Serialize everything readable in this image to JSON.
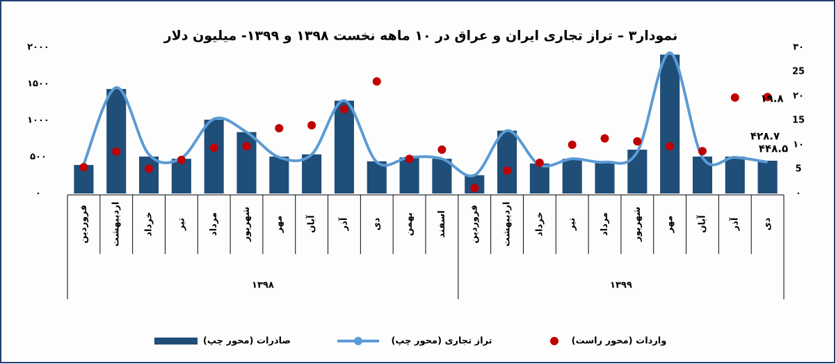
{
  "chart_data": {
    "type": "combo",
    "title": "نمودار۳ – تراز تجاری ایران و عراق در ۱۰ ماهه نخست ۱۳۹۸ و ۱۳۹۹- میلیون دلار",
    "categories": [
      "فروردین",
      "اردیبهشت",
      "خرداد",
      "تیر",
      "مرداد",
      "شهریور",
      "مهر",
      "آبان",
      "آذر",
      "دی",
      "بهمن",
      "اسفند",
      "فروردین",
      "اردیبهشت",
      "خرداد",
      "تیر",
      "مرداد",
      "شهریور",
      "مهر",
      "آبان",
      "آذر",
      "دی"
    ],
    "groups": [
      {
        "label": "۱۳۹۸",
        "span": 12
      },
      {
        "label": "۱۳۹۹",
        "span": 10
      }
    ],
    "ylim": [
      0,
      2000
    ],
    "yticks": [
      {
        "value": 0,
        "label": "۰"
      },
      {
        "value": 500,
        "label": "۵۰۰"
      },
      {
        "value": 1000,
        "label": "۱۰۰۰"
      },
      {
        "value": 1500,
        "label": "۱۵۰۰"
      },
      {
        "value": 2000,
        "label": "۲۰۰۰"
      }
    ],
    "y2lim": [
      0,
      30
    ],
    "y2ticks": [
      {
        "value": 0,
        "label": "۰"
      },
      5,
      {
        "value": 10,
        "label": "۱۰"
      },
      15,
      {
        "value": 20,
        "label": "۲۰"
      },
      25,
      {
        "value": 30,
        "label": "۳۰"
      }
    ],
    "series": [
      {
        "name": "صادرات (محور چپ)",
        "type": "bar",
        "color": "#1f4e79",
        "axis": "y",
        "values": [
          390,
          1430,
          505,
          475,
          1010,
          840,
          505,
          535,
          1270,
          440,
          495,
          475,
          250,
          860,
          410,
          475,
          440,
          600,
          1900,
          505,
          505,
          448.5
        ],
        "value_labels": [
          null,
          null,
          null,
          null,
          null,
          null,
          null,
          null,
          null,
          null,
          null,
          null,
          null,
          null,
          null,
          null,
          null,
          null,
          null,
          null,
          null,
          "۴۴۸.۵"
        ]
      },
      {
        "name": "تراز تجاری (محور چپ)",
        "type": "line",
        "color": "#5b9bd5",
        "axis": "y",
        "values": [
          400,
          1450,
          535,
          485,
          1020,
          840,
          495,
          535,
          1270,
          430,
          495,
          475,
          250,
          860,
          390,
          475,
          430,
          570,
          1925,
          495,
          495,
          428.7
        ],
        "value_labels": [
          null,
          null,
          null,
          null,
          null,
          null,
          null,
          null,
          null,
          null,
          null,
          null,
          null,
          null,
          null,
          null,
          null,
          null,
          null,
          null,
          null,
          "۴۲۸.۷"
        ]
      },
      {
        "name": "واردات (محور راست)",
        "type": "scatter",
        "color": "#c00000",
        "axis": "y2",
        "values": [
          5.4,
          8.6,
          5.1,
          6.9,
          9.4,
          9.7,
          13.4,
          14,
          17.3,
          23,
          7.1,
          9,
          1.1,
          4.7,
          6.3,
          10,
          11.3,
          10.7,
          9.7,
          8.7,
          19.7,
          19.8
        ],
        "value_labels": [
          null,
          null,
          null,
          null,
          null,
          null,
          null,
          null,
          null,
          null,
          null,
          null,
          null,
          null,
          null,
          null,
          null,
          null,
          null,
          null,
          null,
          "۱۹.۸"
        ]
      }
    ]
  }
}
